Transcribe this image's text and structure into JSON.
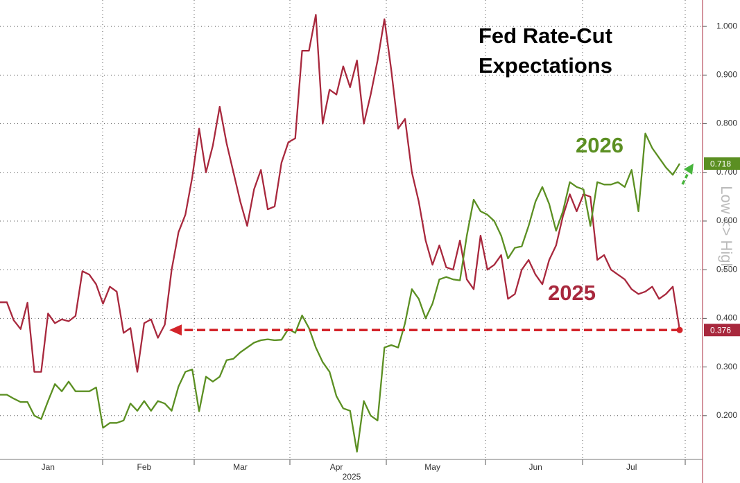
{
  "chart_data": {
    "type": "line",
    "title": "Fed Rate-Cut Expectations",
    "xlabel": "2025",
    "axis_note": "Low <> High",
    "categories": [
      null,
      null,
      null,
      null,
      null,
      null,
      null,
      "Jan",
      null,
      null,
      null,
      null,
      null,
      null,
      null,
      null,
      null,
      null,
      null,
      null,
      null,
      "Feb",
      null,
      null,
      null,
      null,
      null,
      null,
      null,
      null,
      null,
      null,
      null,
      null,
      null,
      "Mar",
      null,
      null,
      null,
      null,
      null,
      null,
      null,
      null,
      null,
      null,
      null,
      null,
      null,
      "Apr",
      null,
      null,
      null,
      null,
      null,
      null,
      null,
      null,
      null,
      null,
      null,
      null,
      null,
      "May",
      null,
      null,
      null,
      null,
      null,
      null,
      null,
      null,
      null,
      null,
      null,
      null,
      null,
      null,
      "Jun",
      null,
      null,
      null,
      null,
      null,
      null,
      null,
      null,
      null,
      null,
      null,
      null,
      null,
      "Jul",
      null,
      null,
      null,
      null,
      null,
      null,
      null
    ],
    "series": [
      {
        "name": "2025",
        "color": "#a8283d",
        "values": [
          0.433,
          0.433,
          0.396,
          0.378,
          0.432,
          0.29,
          0.29,
          0.41,
          0.39,
          0.398,
          0.394,
          0.405,
          0.497,
          0.49,
          0.47,
          0.43,
          0.465,
          0.455,
          0.37,
          0.38,
          0.29,
          0.39,
          0.398,
          0.36,
          0.387,
          0.5,
          0.577,
          0.613,
          0.69,
          0.79,
          0.7,
          0.755,
          0.835,
          0.76,
          0.7,
          0.64,
          0.59,
          0.665,
          0.705,
          0.624,
          0.63,
          0.72,
          0.762,
          0.77,
          0.95,
          0.95,
          1.024,
          0.8,
          0.87,
          0.86,
          0.918,
          0.875,
          0.93,
          0.8,
          0.86,
          0.93,
          1.015,
          0.91,
          0.79,
          0.81,
          0.7,
          0.64,
          0.56,
          0.51,
          0.55,
          0.505,
          0.5,
          0.56,
          0.48,
          0.46,
          0.57,
          0.5,
          0.51,
          0.53,
          0.44,
          0.45,
          0.5,
          0.52,
          0.49,
          0.47,
          0.52,
          0.55,
          0.61,
          0.655,
          0.62,
          0.655,
          0.65,
          0.52,
          0.53,
          0.5,
          0.49,
          0.48,
          0.46,
          0.45,
          0.455,
          0.465,
          0.44,
          0.45,
          0.465,
          0.376
        ]
      },
      {
        "name": "2026",
        "color": "#5b8f22",
        "values": [
          0.243,
          0.243,
          0.235,
          0.228,
          0.228,
          0.2,
          0.193,
          0.23,
          0.265,
          0.25,
          0.27,
          0.25,
          0.25,
          0.25,
          0.258,
          0.175,
          0.185,
          0.185,
          0.19,
          0.225,
          0.21,
          0.23,
          0.21,
          0.23,
          0.225,
          0.21,
          0.26,
          0.29,
          0.295,
          0.209,
          0.28,
          0.27,
          0.28,
          0.314,
          0.317,
          0.33,
          0.34,
          0.35,
          0.355,
          0.357,
          0.355,
          0.356,
          0.378,
          0.37,
          0.406,
          0.38,
          0.34,
          0.31,
          0.29,
          0.24,
          0.215,
          0.21,
          0.126,
          0.23,
          0.2,
          0.19,
          0.34,
          0.345,
          0.34,
          0.39,
          0.46,
          0.44,
          0.4,
          0.43,
          0.48,
          0.485,
          0.48,
          0.478,
          0.57,
          0.644,
          0.62,
          0.613,
          0.6,
          0.57,
          0.523,
          0.545,
          0.548,
          0.59,
          0.64,
          0.67,
          0.635,
          0.58,
          0.62,
          0.68,
          0.67,
          0.665,
          0.59,
          0.68,
          0.675,
          0.675,
          0.68,
          0.67,
          0.705,
          0.62,
          0.78,
          0.75,
          0.73,
          0.71,
          0.695,
          0.718
        ]
      }
    ],
    "ylim": [
      0.11,
      1.05
    ],
    "yticks": [
      {
        "value": 0.2,
        "label": "0.200"
      },
      {
        "value": 0.3,
        "label": "0.300"
      },
      {
        "value": 0.4,
        "label": "0.400"
      },
      {
        "value": 0.5,
        "label": "0.500"
      },
      {
        "value": 0.6,
        "label": "0.600"
      },
      {
        "value": 0.7,
        "label": "0.700"
      },
      {
        "value": 0.8,
        "label": "0.800"
      },
      {
        "value": 0.9,
        "label": "0.900"
      },
      {
        "value": 1,
        "label": "1.000"
      }
    ],
    "grid": true
  }
}
